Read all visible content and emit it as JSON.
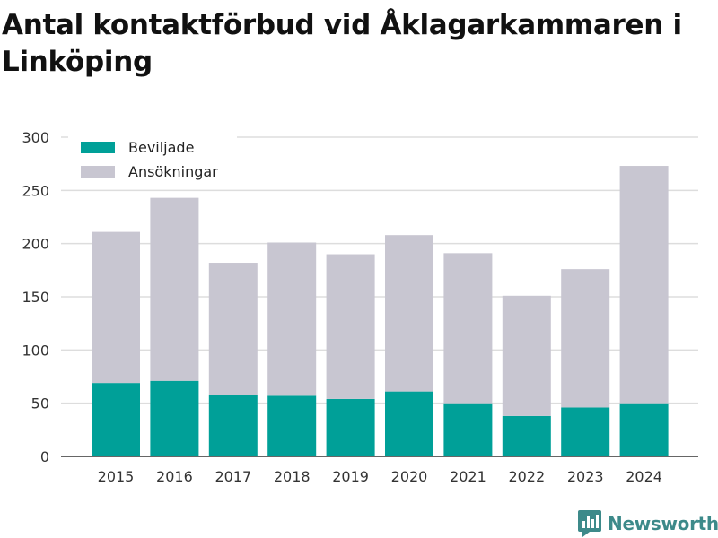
{
  "title": "Antal kontaktförbud vid Åklagarkammaren i Linköping",
  "colors": {
    "beviljade": "#00a098",
    "ansokningar": "#c8c6d1",
    "grid": "#dddddd",
    "axis": "#333333",
    "brand": "#3d8a8a"
  },
  "brand": {
    "name": "Newsworthy",
    "icon": "chat-bar-chart-icon"
  },
  "chart_data": {
    "type": "bar",
    "stacked": true,
    "categories": [
      "2015",
      "2016",
      "2017",
      "2018",
      "2019",
      "2020",
      "2021",
      "2022",
      "2023",
      "2024"
    ],
    "series": [
      {
        "name": "Beviljade",
        "values": [
          69,
          71,
          58,
          57,
          54,
          61,
          50,
          38,
          46,
          50
        ]
      },
      {
        "name": "Ansökningar",
        "values": [
          142,
          172,
          124,
          144,
          136,
          147,
          141,
          113,
          130,
          223
        ]
      }
    ],
    "yticks": [
      0,
      50,
      100,
      150,
      200,
      250,
      300
    ],
    "ylim": [
      0,
      300
    ],
    "grid": true,
    "legend": "top-left"
  }
}
